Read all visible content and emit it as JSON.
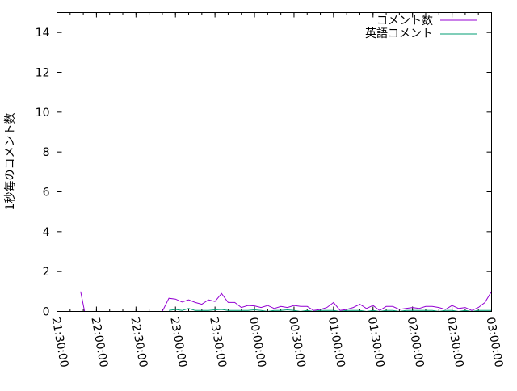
{
  "chart_data": {
    "type": "line",
    "title": "",
    "xlabel": "",
    "ylabel": "1秒毎のコメント数",
    "xlim": [
      "21:30:00",
      "03:00:00"
    ],
    "ylim": [
      0,
      15
    ],
    "grid": false,
    "legend_position": "top-right",
    "x_ticks": [
      "21:30:00",
      "22:00:00",
      "22:30:00",
      "23:00:00",
      "23:30:00",
      "00:00:00",
      "00:30:00",
      "01:00:00",
      "01:30:00",
      "02:00:00",
      "02:30:00",
      "03:00:00"
    ],
    "y_ticks": [
      0,
      2,
      4,
      6,
      8,
      10,
      12,
      14
    ],
    "series": [
      {
        "name": "コメント数",
        "color": "#9400d3",
        "x": [
          "21:48",
          "21:51",
          "22:50",
          "22:55",
          "23:00",
          "23:05",
          "23:10",
          "23:15",
          "23:20",
          "23:25",
          "23:30",
          "23:35",
          "23:40",
          "23:45",
          "23:50",
          "23:55",
          "00:00",
          "00:05",
          "00:10",
          "00:15",
          "00:20",
          "00:25",
          "00:30",
          "00:35",
          "00:40",
          "00:45",
          "00:50",
          "00:55",
          "01:00",
          "01:05",
          "01:10",
          "01:15",
          "01:20",
          "01:25",
          "01:30",
          "01:35",
          "01:40",
          "01:45",
          "01:50",
          "01:55",
          "02:00",
          "02:05",
          "02:10",
          "02:15",
          "02:20",
          "02:25",
          "02:30",
          "02:35",
          "02:40",
          "02:45",
          "02:50",
          "02:55",
          "03:00"
        ],
        "values": [
          1.0,
          0,
          0,
          0.66,
          0.62,
          0.47,
          0.58,
          0.45,
          0.36,
          0.58,
          0.5,
          0.9,
          0.45,
          0.45,
          0.2,
          0.3,
          0.28,
          0.2,
          0.3,
          0.15,
          0.25,
          0.2,
          0.3,
          0.25,
          0.25,
          0.05,
          0.1,
          0.2,
          0.45,
          0.05,
          0.1,
          0.2,
          0.36,
          0.15,
          0.3,
          0.05,
          0.25,
          0.25,
          0.1,
          0.15,
          0.2,
          0.15,
          0.25,
          0.25,
          0.2,
          0.1,
          0.3,
          0.15,
          0.2,
          0.05,
          0.2,
          0.45,
          1.0
        ]
      },
      {
        "name": "英語コメント",
        "color": "#009e73",
        "x": [
          "22:55",
          "23:00",
          "23:05",
          "23:10",
          "23:15",
          "23:20",
          "23:25",
          "23:30",
          "23:35",
          "23:40",
          "23:45",
          "23:50",
          "23:55",
          "00:00",
          "00:05",
          "00:10",
          "00:15",
          "00:20",
          "00:25",
          "00:30",
          "00:35",
          "00:40",
          "00:45",
          "00:50",
          "00:55",
          "01:00",
          "01:05",
          "01:10",
          "01:15",
          "01:20",
          "01:25",
          "01:30",
          "01:35",
          "01:40",
          "01:45",
          "01:50",
          "01:55",
          "02:00",
          "02:05",
          "02:10",
          "02:15",
          "02:20",
          "02:25",
          "02:30",
          "02:35",
          "02:40",
          "02:45",
          "02:50",
          "02:55",
          "03:00"
        ],
        "values": [
          0.05,
          0.1,
          0.05,
          0.15,
          0.05,
          0.05,
          0.05,
          0.08,
          0.1,
          0.05,
          0.05,
          0.05,
          0.05,
          0.08,
          0.05,
          0,
          0.05,
          0.05,
          0.08,
          0.05,
          0,
          0.05,
          0,
          0.05,
          0.05,
          0.05,
          0,
          0.05,
          0.05,
          0.05,
          0,
          0.05,
          0,
          0.05,
          0.05,
          0,
          0.05,
          0.05,
          0.05,
          0.05,
          0.05,
          0,
          0.05,
          0.05,
          0,
          0.05,
          0,
          0.05,
          0.05,
          0.05
        ]
      }
    ]
  }
}
